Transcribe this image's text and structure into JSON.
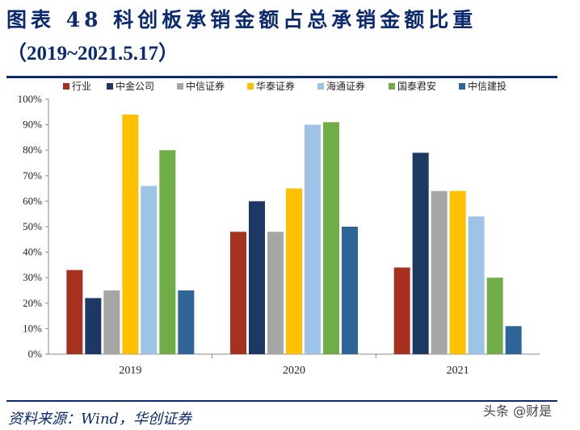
{
  "header": {
    "title_line1": "图表 48 科创板承销金额占总承销金额比重",
    "title_line2": "（2019~2021.5.17）"
  },
  "footer": {
    "source": "资料来源：Wind，华创证券",
    "watermark": "头条 @财是"
  },
  "chart_data": {
    "type": "bar",
    "categories": [
      "2019",
      "2020",
      "2021"
    ],
    "series": [
      {
        "name": "行业",
        "color": "#a5311e",
        "values": [
          33,
          48,
          34
        ]
      },
      {
        "name": "中金公司",
        "color": "#1e3864",
        "values": [
          22,
          60,
          79
        ]
      },
      {
        "name": "中信证券",
        "color": "#a6a6a6",
        "values": [
          25,
          48,
          64
        ]
      },
      {
        "name": "华泰证券",
        "color": "#ffc000",
        "values": [
          94,
          65,
          64
        ]
      },
      {
        "name": "海通证券",
        "color": "#9dc3e6",
        "values": [
          66,
          90,
          54
        ]
      },
      {
        "name": "国泰君安",
        "color": "#70ad47",
        "values": [
          80,
          91,
          30
        ]
      },
      {
        "name": "中信建投",
        "color": "#2e6496",
        "values": [
          25,
          50,
          11
        ]
      }
    ],
    "ylim": [
      0,
      100
    ],
    "yticks": [
      "0%",
      "10%",
      "20%",
      "30%",
      "40%",
      "50%",
      "60%",
      "70%",
      "80%",
      "90%",
      "100%"
    ],
    "grid": false,
    "legend": "top"
  }
}
